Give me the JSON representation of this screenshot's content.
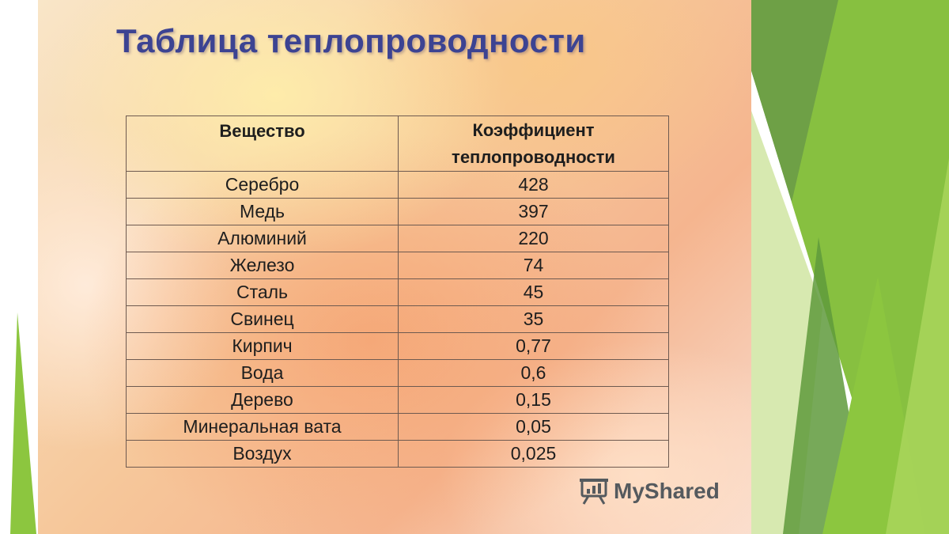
{
  "slide": {
    "title": "Таблица теплопроводности",
    "table": {
      "headers": {
        "substance": "Вещество",
        "coefficient_line1": "Коэффициент",
        "coefficient_line2": "теплопроводности"
      },
      "rows": [
        {
          "substance": "Серебро",
          "value": "428"
        },
        {
          "substance": "Медь",
          "value": "397"
        },
        {
          "substance": "Алюминий",
          "value": "220"
        },
        {
          "substance": "Железо",
          "value": "74"
        },
        {
          "substance": "Сталь",
          "value": "45"
        },
        {
          "substance": "Свинец",
          "value": "35"
        },
        {
          "substance": "Кирпич",
          "value": "0,77"
        },
        {
          "substance": "Вода",
          "value": "0,6"
        },
        {
          "substance": "Дерево",
          "value": "0,15"
        },
        {
          "substance": "Минеральная вата",
          "value": "0,05"
        },
        {
          "substance": "Воздух",
          "value": "0,025"
        }
      ]
    }
  },
  "watermark": {
    "text": "MyShared",
    "icon": "myshared-logo-icon"
  },
  "colors": {
    "title": "#3c4392",
    "green_dark": "#5f9a3c",
    "green_light": "#8cc63f",
    "border": "#6e5a50"
  }
}
